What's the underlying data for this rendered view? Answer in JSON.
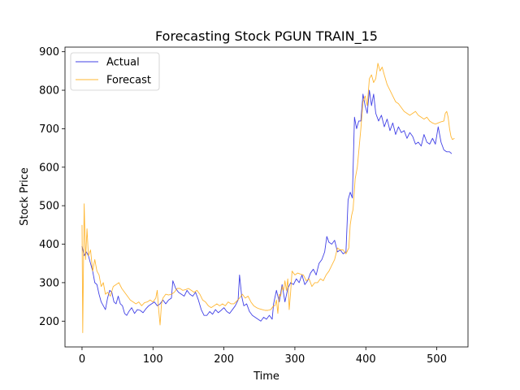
{
  "chart_data": {
    "type": "line",
    "title": "Forecasting Stock PGUN TRAIN_15",
    "xlabel": "Time",
    "ylabel": "Stock Price",
    "xlim": [
      -24,
      544
    ],
    "ylim": [
      133,
      912
    ],
    "xticks": [
      0,
      100,
      200,
      300,
      400,
      500
    ],
    "yticks": [
      200,
      300,
      400,
      500,
      600,
      700,
      800,
      900
    ],
    "grid": false,
    "legend_position": "top-left",
    "series": [
      {
        "name": "Actual",
        "color": "#0000dd",
        "points": [
          [
            0,
            395
          ],
          [
            3,
            370
          ],
          [
            6,
            380
          ],
          [
            9,
            370
          ],
          [
            12,
            350
          ],
          [
            15,
            330
          ],
          [
            18,
            300
          ],
          [
            21,
            295
          ],
          [
            24,
            270
          ],
          [
            27,
            250
          ],
          [
            30,
            240
          ],
          [
            33,
            230
          ],
          [
            36,
            260
          ],
          [
            39,
            280
          ],
          [
            42,
            275
          ],
          [
            45,
            250
          ],
          [
            48,
            245
          ],
          [
            51,
            265
          ],
          [
            54,
            245
          ],
          [
            57,
            240
          ],
          [
            60,
            220
          ],
          [
            63,
            215
          ],
          [
            66,
            225
          ],
          [
            70,
            235
          ],
          [
            74,
            220
          ],
          [
            78,
            230
          ],
          [
            82,
            228
          ],
          [
            86,
            222
          ],
          [
            90,
            232
          ],
          [
            94,
            240
          ],
          [
            98,
            245
          ],
          [
            102,
            250
          ],
          [
            106,
            240
          ],
          [
            110,
            245
          ],
          [
            114,
            255
          ],
          [
            118,
            245
          ],
          [
            122,
            255
          ],
          [
            126,
            260
          ],
          [
            128,
            305
          ],
          [
            132,
            285
          ],
          [
            136,
            275
          ],
          [
            140,
            270
          ],
          [
            144,
            265
          ],
          [
            148,
            280
          ],
          [
            152,
            270
          ],
          [
            156,
            265
          ],
          [
            160,
            275
          ],
          [
            164,
            255
          ],
          [
            168,
            230
          ],
          [
            172,
            215
          ],
          [
            176,
            215
          ],
          [
            180,
            225
          ],
          [
            184,
            218
          ],
          [
            188,
            230
          ],
          [
            192,
            222
          ],
          [
            196,
            228
          ],
          [
            200,
            235
          ],
          [
            204,
            225
          ],
          [
            208,
            220
          ],
          [
            212,
            230
          ],
          [
            216,
            240
          ],
          [
            220,
            255
          ],
          [
            222,
            320
          ],
          [
            225,
            265
          ],
          [
            228,
            240
          ],
          [
            232,
            245
          ],
          [
            236,
            225
          ],
          [
            240,
            215
          ],
          [
            244,
            210
          ],
          [
            248,
            205
          ],
          [
            252,
            200
          ],
          [
            256,
            210
          ],
          [
            260,
            205
          ],
          [
            264,
            215
          ],
          [
            268,
            205
          ],
          [
            270,
            245
          ],
          [
            274,
            280
          ],
          [
            278,
            250
          ],
          [
            282,
            295
          ],
          [
            286,
            250
          ],
          [
            290,
            285
          ],
          [
            294,
            300
          ],
          [
            298,
            295
          ],
          [
            302,
            310
          ],
          [
            306,
            300
          ],
          [
            310,
            320
          ],
          [
            314,
            295
          ],
          [
            318,
            305
          ],
          [
            322,
            325
          ],
          [
            326,
            335
          ],
          [
            330,
            320
          ],
          [
            334,
            350
          ],
          [
            338,
            360
          ],
          [
            342,
            380
          ],
          [
            345,
            420
          ],
          [
            348,
            405
          ],
          [
            352,
            400
          ],
          [
            356,
            410
          ],
          [
            360,
            380
          ],
          [
            364,
            385
          ],
          [
            368,
            375
          ],
          [
            372,
            380
          ],
          [
            375,
            515
          ],
          [
            378,
            535
          ],
          [
            381,
            520
          ],
          [
            384,
            730
          ],
          [
            387,
            700
          ],
          [
            390,
            720
          ],
          [
            393,
            720
          ],
          [
            396,
            790
          ],
          [
            399,
            760
          ],
          [
            402,
            740
          ],
          [
            405,
            800
          ],
          [
            408,
            760
          ],
          [
            411,
            790
          ],
          [
            414,
            740
          ],
          [
            418,
            720
          ],
          [
            422,
            735
          ],
          [
            426,
            705
          ],
          [
            430,
            725
          ],
          [
            434,
            695
          ],
          [
            438,
            715
          ],
          [
            442,
            685
          ],
          [
            446,
            705
          ],
          [
            450,
            690
          ],
          [
            454,
            695
          ],
          [
            458,
            675
          ],
          [
            462,
            690
          ],
          [
            466,
            680
          ],
          [
            470,
            660
          ],
          [
            474,
            665
          ],
          [
            478,
            655
          ],
          [
            482,
            685
          ],
          [
            486,
            665
          ],
          [
            490,
            660
          ],
          [
            494,
            675
          ],
          [
            498,
            660
          ],
          [
            502,
            705
          ],
          [
            506,
            665
          ],
          [
            510,
            645
          ],
          [
            514,
            640
          ],
          [
            518,
            640
          ],
          [
            521,
            635
          ]
        ]
      },
      {
        "name": "Forecast",
        "color": "#ffa500",
        "points": [
          [
            0,
            450
          ],
          [
            1,
            170
          ],
          [
            3,
            505
          ],
          [
            5,
            360
          ],
          [
            7,
            440
          ],
          [
            9,
            370
          ],
          [
            12,
            385
          ],
          [
            15,
            330
          ],
          [
            18,
            360
          ],
          [
            21,
            330
          ],
          [
            24,
            320
          ],
          [
            27,
            290
          ],
          [
            30,
            300
          ],
          [
            33,
            270
          ],
          [
            36,
            275
          ],
          [
            40,
            265
          ],
          [
            44,
            290
          ],
          [
            48,
            295
          ],
          [
            52,
            300
          ],
          [
            56,
            285
          ],
          [
            60,
            275
          ],
          [
            64,
            265
          ],
          [
            68,
            255
          ],
          [
            72,
            250
          ],
          [
            76,
            245
          ],
          [
            80,
            250
          ],
          [
            84,
            240
          ],
          [
            88,
            248
          ],
          [
            92,
            250
          ],
          [
            96,
            255
          ],
          [
            100,
            250
          ],
          [
            104,
            260
          ],
          [
            106,
            280
          ],
          [
            108,
            230
          ],
          [
            110,
            190
          ],
          [
            112,
            245
          ],
          [
            114,
            260
          ],
          [
            118,
            270
          ],
          [
            122,
            268
          ],
          [
            126,
            270
          ],
          [
            130,
            275
          ],
          [
            134,
            285
          ],
          [
            138,
            285
          ],
          [
            142,
            280
          ],
          [
            146,
            282
          ],
          [
            150,
            285
          ],
          [
            154,
            280
          ],
          [
            158,
            275
          ],
          [
            162,
            280
          ],
          [
            166,
            270
          ],
          [
            170,
            255
          ],
          [
            174,
            250
          ],
          [
            178,
            240
          ],
          [
            182,
            235
          ],
          [
            186,
            240
          ],
          [
            190,
            245
          ],
          [
            194,
            240
          ],
          [
            198,
            245
          ],
          [
            202,
            240
          ],
          [
            206,
            250
          ],
          [
            210,
            245
          ],
          [
            214,
            245
          ],
          [
            218,
            252
          ],
          [
            222,
            260
          ],
          [
            226,
            270
          ],
          [
            230,
            260
          ],
          [
            234,
            265
          ],
          [
            238,
            250
          ],
          [
            242,
            240
          ],
          [
            246,
            235
          ],
          [
            250,
            232
          ],
          [
            254,
            230
          ],
          [
            258,
            228
          ],
          [
            262,
            228
          ],
          [
            266,
            230
          ],
          [
            270,
            240
          ],
          [
            272,
            240
          ],
          [
            274,
            255
          ],
          [
            276,
            220
          ],
          [
            278,
            270
          ],
          [
            280,
            265
          ],
          [
            282,
            290
          ],
          [
            284,
            280
          ],
          [
            286,
            305
          ],
          [
            288,
            280
          ],
          [
            290,
            310
          ],
          [
            292,
            230
          ],
          [
            294,
            275
          ],
          [
            296,
            330
          ],
          [
            300,
            320
          ],
          [
            304,
            325
          ],
          [
            308,
            322
          ],
          [
            312,
            320
          ],
          [
            316,
            305
          ],
          [
            320,
            310
          ],
          [
            324,
            290
          ],
          [
            328,
            300
          ],
          [
            332,
            300
          ],
          [
            336,
            310
          ],
          [
            340,
            305
          ],
          [
            344,
            320
          ],
          [
            348,
            330
          ],
          [
            352,
            345
          ],
          [
            356,
            360
          ],
          [
            360,
            390
          ],
          [
            364,
            385
          ],
          [
            368,
            385
          ],
          [
            372,
            375
          ],
          [
            376,
            390
          ],
          [
            378,
            450
          ],
          [
            380,
            475
          ],
          [
            382,
            490
          ],
          [
            385,
            570
          ],
          [
            388,
            600
          ],
          [
            390,
            640
          ],
          [
            393,
            700
          ],
          [
            396,
            770
          ],
          [
            399,
            785
          ],
          [
            402,
            760
          ],
          [
            405,
            830
          ],
          [
            408,
            840
          ],
          [
            411,
            820
          ],
          [
            414,
            830
          ],
          [
            417,
            870
          ],
          [
            420,
            850
          ],
          [
            423,
            860
          ],
          [
            426,
            840
          ],
          [
            430,
            815
          ],
          [
            434,
            800
          ],
          [
            438,
            785
          ],
          [
            442,
            770
          ],
          [
            446,
            765
          ],
          [
            450,
            755
          ],
          [
            454,
            745
          ],
          [
            458,
            740
          ],
          [
            462,
            735
          ],
          [
            466,
            740
          ],
          [
            470,
            745
          ],
          [
            474,
            735
          ],
          [
            478,
            730
          ],
          [
            482,
            725
          ],
          [
            486,
            730
          ],
          [
            490,
            720
          ],
          [
            494,
            715
          ],
          [
            498,
            712
          ],
          [
            502,
            715
          ],
          [
            506,
            718
          ],
          [
            510,
            720
          ],
          [
            512,
            740
          ],
          [
            514,
            745
          ],
          [
            516,
            730
          ],
          [
            518,
            700
          ],
          [
            520,
            680
          ],
          [
            522,
            672
          ],
          [
            525,
            675
          ]
        ]
      }
    ]
  }
}
